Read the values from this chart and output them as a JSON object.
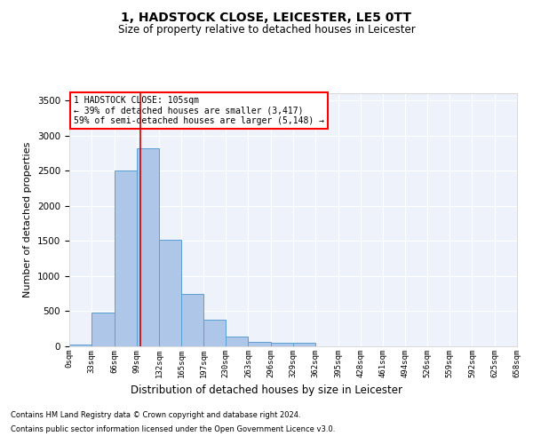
{
  "title": "1, HADSTOCK CLOSE, LEICESTER, LE5 0TT",
  "subtitle": "Size of property relative to detached houses in Leicester",
  "xlabel": "Distribution of detached houses by size in Leicester",
  "ylabel": "Number of detached properties",
  "footnote1": "Contains HM Land Registry data © Crown copyright and database right 2024.",
  "footnote2": "Contains public sector information licensed under the Open Government Licence v3.0.",
  "annotation_line1": "1 HADSTOCK CLOSE: 105sqm",
  "annotation_line2": "← 39% of detached houses are smaller (3,417)",
  "annotation_line3": "59% of semi-detached houses are larger (5,148) →",
  "property_size": 105,
  "bar_values": [
    20,
    480,
    2500,
    2820,
    1520,
    750,
    380,
    140,
    65,
    55,
    55,
    0,
    0,
    0,
    0,
    0,
    0,
    0,
    0,
    0
  ],
  "bin_edges": [
    0,
    33,
    66,
    99,
    132,
    165,
    197,
    230,
    263,
    296,
    329,
    362,
    395,
    428,
    461,
    494,
    526,
    559,
    592,
    625,
    658
  ],
  "bar_color": "#aec6e8",
  "bar_edge_color": "#5a9fd4",
  "red_line_color": "#cc0000",
  "background_color": "#eef2fa",
  "grid_color": "#ffffff",
  "ylim": [
    0,
    3600
  ],
  "yticks": [
    0,
    500,
    1000,
    1500,
    2000,
    2500,
    3000,
    3500
  ],
  "tick_labels": [
    "0sqm",
    "33sqm",
    "66sqm",
    "99sqm",
    "132sqm",
    "165sqm",
    "197sqm",
    "230sqm",
    "263sqm",
    "296sqm",
    "329sqm",
    "362sqm",
    "395sqm",
    "428sqm",
    "461sqm",
    "494sqm",
    "526sqm",
    "559sqm",
    "592sqm",
    "625sqm",
    "658sqm"
  ]
}
